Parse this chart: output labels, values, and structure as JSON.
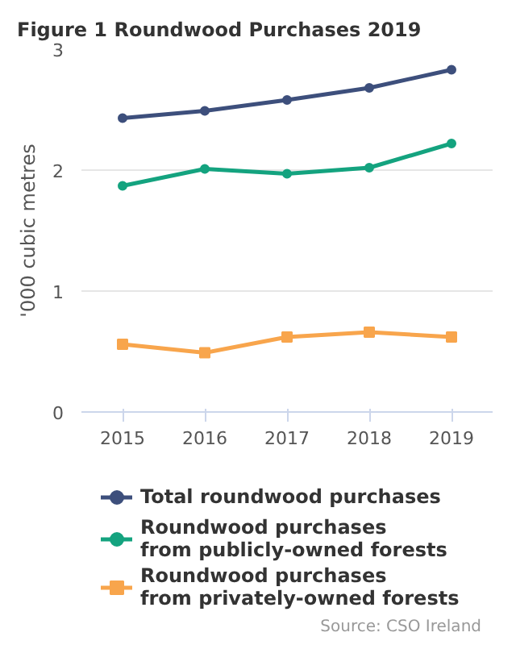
{
  "chart_data": {
    "type": "line",
    "title": "Figure 1 Roundwood Purchases 2019",
    "ylabel": "'000 cubic metres",
    "categories": [
      "2015",
      "2016",
      "2017",
      "2018",
      "2019"
    ],
    "series": [
      {
        "name": "Total roundwood purchases",
        "color": "#3d4f7c",
        "marker": "circle",
        "values": [
          2.43,
          2.49,
          2.58,
          2.68,
          2.83
        ]
      },
      {
        "name": "Roundwood purchases\nfrom publicly-owned forests",
        "color": "#14a37f",
        "marker": "circle",
        "values": [
          1.87,
          2.01,
          1.97,
          2.02,
          2.22
        ]
      },
      {
        "name": "Roundwood purchases\nfrom privately-owned forests",
        "color": "#f8a54c",
        "marker": "square",
        "values": [
          0.56,
          0.49,
          0.62,
          0.66,
          0.62
        ]
      }
    ],
    "ylim": [
      0,
      3
    ],
    "yticks": [
      0,
      1,
      2,
      3
    ],
    "grid": "y",
    "legend": "bottom",
    "annotations": [
      "Source: CSO Ireland"
    ]
  }
}
